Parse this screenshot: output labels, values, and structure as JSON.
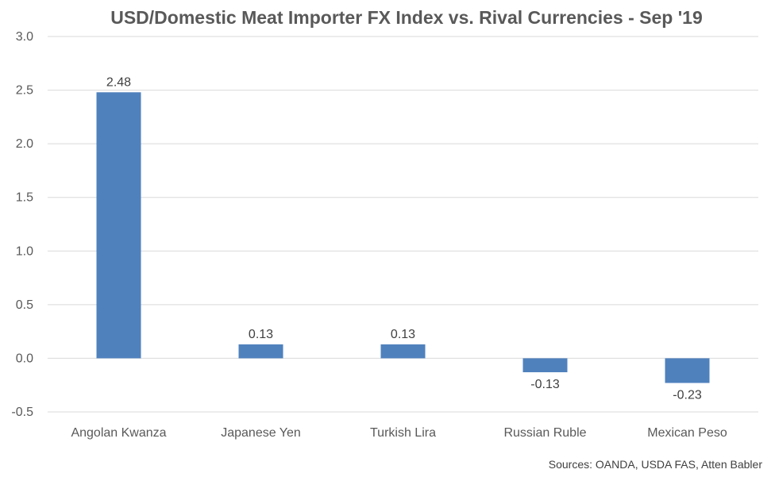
{
  "chart_data": {
    "type": "bar",
    "title": "USD/Domestic Meat Importer FX Index vs. Rival Currencies - Sep '19",
    "categories": [
      "Angolan Kwanza",
      "Japanese Yen",
      "Turkish Lira",
      "Russian Ruble",
      "Mexican Peso"
    ],
    "values": [
      2.48,
      0.13,
      0.13,
      -0.13,
      -0.23
    ],
    "data_labels": [
      "2.48",
      "0.13",
      "0.13",
      "-0.13",
      "-0.23"
    ],
    "ylim": [
      -0.5,
      3.0
    ],
    "yticks": [
      "-0.5",
      "0.0",
      "0.5",
      "1.0",
      "1.5",
      "2.0",
      "2.5",
      "3.0"
    ],
    "grid": true,
    "bar_color": "#4F81BD",
    "source": "Sources: OANDA, USDA FAS, Atten Babler"
  }
}
